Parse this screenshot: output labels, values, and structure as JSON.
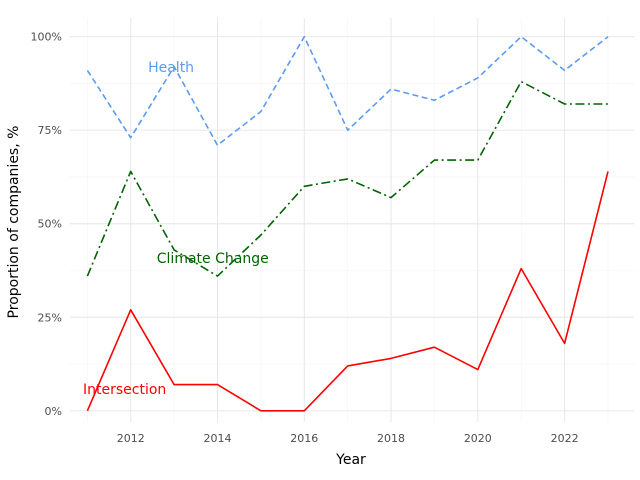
{
  "chart_data": {
    "type": "line",
    "xlabel": "Year",
    "ylabel": "Proportion of companies, %",
    "xlim": [
      2010.6,
      2023.6
    ],
    "ylim": [
      -0.03,
      1.05
    ],
    "x_ticks": [
      2012,
      2014,
      2016,
      2018,
      2020,
      2022
    ],
    "x_tick_labels": [
      "2012",
      "2014",
      "2016",
      "2018",
      "2020",
      "2022"
    ],
    "y_ticks": [
      0,
      0.25,
      0.5,
      0.75,
      1.0
    ],
    "y_tick_labels": [
      "0%",
      "25%",
      "50%",
      "75%",
      "100%"
    ],
    "grid": true,
    "legend": "none (direct labels)",
    "x": [
      2011,
      2012,
      2013,
      2014,
      2015,
      2016,
      2017,
      2018,
      2019,
      2020,
      2021,
      2022,
      2023
    ],
    "series": [
      {
        "name": "Health",
        "color": "#5b9bf0",
        "dash": "dashed",
        "values": [
          0.91,
          0.73,
          0.92,
          0.71,
          0.8,
          1.0,
          0.75,
          0.86,
          0.83,
          0.89,
          1.0,
          0.91,
          1.0
        ],
        "label_at": [
          2012.4,
          0.905
        ]
      },
      {
        "name": "Climate Change",
        "color": "#006400",
        "dash": "dashdot",
        "values": [
          0.36,
          0.64,
          0.43,
          0.36,
          0.47,
          0.6,
          0.62,
          0.57,
          0.67,
          0.67,
          0.88,
          0.82,
          0.82
        ],
        "label_at": [
          2012.6,
          0.395
        ]
      },
      {
        "name": "Intersection",
        "color": "#ff0000",
        "dash": "solid",
        "values": [
          0.0,
          0.27,
          0.07,
          0.07,
          0.0,
          0.0,
          0.12,
          0.14,
          0.17,
          0.11,
          0.38,
          0.18,
          0.64
        ],
        "label_at": [
          2010.9,
          0.045
        ]
      }
    ]
  }
}
